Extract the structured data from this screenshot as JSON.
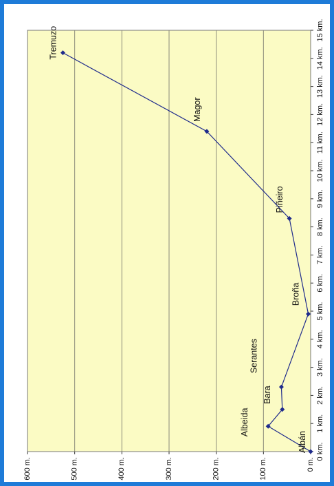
{
  "chart_data": {
    "type": "line",
    "title": "",
    "xlabel": "",
    "ylabel": "",
    "orientation": "rotated-90-clockwise",
    "x": [
      0,
      0.9,
      1.5,
      2.3,
      4.9,
      8.3,
      11.4,
      14.2
    ],
    "values": [
      0,
      90,
      60,
      62,
      5,
      45,
      220,
      525
    ],
    "point_labels": [
      "Albán",
      "Albeida",
      "Bara",
      "Serantes",
      "Broña",
      "Piñeiro",
      "Magor",
      "Tremuzo"
    ],
    "x_ticks": [
      "0 km.",
      "1 km.",
      "2 km.",
      "3 km.",
      "4 km.",
      "5 km.",
      "6 km.",
      "7 km.",
      "8 km.",
      "9 km.",
      "10 km.",
      "11 km.",
      "12 km.",
      "13 km.",
      "14 km.",
      "15 km."
    ],
    "y_ticks": [
      "0 m.",
      "100 m.",
      "200 m.",
      "300 m.",
      "400 m.",
      "500 m.",
      "600 m."
    ],
    "xlim": [
      0,
      15
    ],
    "ylim": [
      0,
      600
    ],
    "grid": true,
    "colors": {
      "line": "#1f2b8c",
      "plot_background": "#fbfbc4",
      "grid": "#8a8a7a",
      "frame": "#1e7bd8"
    }
  }
}
